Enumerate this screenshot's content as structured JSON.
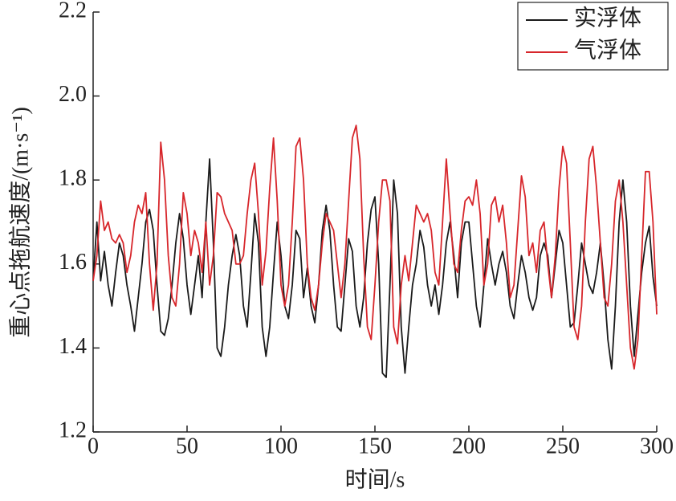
{
  "chart_data": {
    "type": "line",
    "x_label": "时间/s",
    "y_label": "重心点拖航速度/(m·s⁻¹)",
    "xlim": [
      0,
      300
    ],
    "xticks": [
      0,
      50,
      100,
      150,
      200,
      250,
      300
    ],
    "ylim": [
      1.2,
      2.2
    ],
    "yticks": [
      1.2,
      1.4,
      1.6,
      1.8,
      {
        "value": 2,
        "label": "2.0"
      },
      2.2
    ],
    "legend": "upper right",
    "x": [
      0,
      2,
      4,
      6,
      8,
      10,
      12,
      14,
      16,
      18,
      20,
      22,
      24,
      26,
      28,
      30,
      32,
      34,
      36,
      38,
      40,
      42,
      44,
      46,
      48,
      50,
      52,
      54,
      56,
      58,
      60,
      62,
      64,
      66,
      68,
      70,
      72,
      74,
      76,
      78,
      80,
      82,
      84,
      86,
      88,
      90,
      92,
      94,
      96,
      98,
      100,
      102,
      104,
      106,
      108,
      110,
      112,
      114,
      116,
      118,
      120,
      122,
      124,
      126,
      128,
      130,
      132,
      134,
      136,
      138,
      140,
      142,
      144,
      146,
      148,
      150,
      152,
      154,
      156,
      158,
      160,
      162,
      164,
      166,
      168,
      170,
      172,
      174,
      176,
      178,
      180,
      182,
      184,
      186,
      188,
      190,
      192,
      194,
      196,
      198,
      200,
      202,
      204,
      206,
      208,
      210,
      212,
      214,
      216,
      218,
      220,
      222,
      224,
      226,
      228,
      230,
      232,
      234,
      236,
      238,
      240,
      242,
      244,
      246,
      248,
      250,
      252,
      254,
      256,
      258,
      260,
      262,
      264,
      266,
      268,
      270,
      272,
      274,
      276,
      278,
      280,
      282,
      284,
      286,
      288,
      290,
      292,
      294,
      296,
      298,
      300
    ],
    "series": [
      {
        "name": "实浮体",
        "color": "#1a1a1a",
        "values": [
          1.56,
          1.7,
          1.56,
          1.63,
          1.55,
          1.5,
          1.58,
          1.65,
          1.62,
          1.55,
          1.5,
          1.44,
          1.52,
          1.6,
          1.7,
          1.73,
          1.68,
          1.55,
          1.44,
          1.43,
          1.47,
          1.55,
          1.65,
          1.72,
          1.66,
          1.55,
          1.48,
          1.55,
          1.62,
          1.52,
          1.7,
          1.85,
          1.65,
          1.4,
          1.38,
          1.45,
          1.55,
          1.62,
          1.67,
          1.62,
          1.5,
          1.45,
          1.58,
          1.72,
          1.65,
          1.45,
          1.38,
          1.45,
          1.58,
          1.7,
          1.62,
          1.5,
          1.47,
          1.55,
          1.68,
          1.66,
          1.52,
          1.59,
          1.5,
          1.46,
          1.55,
          1.68,
          1.74,
          1.68,
          1.55,
          1.45,
          1.44,
          1.55,
          1.66,
          1.63,
          1.5,
          1.45,
          1.52,
          1.65,
          1.73,
          1.76,
          1.6,
          1.34,
          1.33,
          1.55,
          1.8,
          1.72,
          1.45,
          1.34,
          1.45,
          1.55,
          1.6,
          1.68,
          1.64,
          1.55,
          1.5,
          1.55,
          1.48,
          1.55,
          1.65,
          1.7,
          1.62,
          1.52,
          1.65,
          1.7,
          1.7,
          1.6,
          1.5,
          1.45,
          1.55,
          1.66,
          1.6,
          1.55,
          1.6,
          1.63,
          1.58,
          1.5,
          1.47,
          1.55,
          1.62,
          1.58,
          1.52,
          1.49,
          1.52,
          1.62,
          1.65,
          1.62,
          1.52,
          1.6,
          1.68,
          1.65,
          1.55,
          1.45,
          1.46,
          1.55,
          1.65,
          1.6,
          1.55,
          1.53,
          1.58,
          1.65,
          1.55,
          1.42,
          1.35,
          1.5,
          1.7,
          1.8,
          1.7,
          1.5,
          1.38,
          1.48,
          1.58,
          1.65,
          1.69,
          1.57,
          1.5
        ]
      },
      {
        "name": "气浮体",
        "color": "#d7262b",
        "values": [
          1.56,
          1.62,
          1.75,
          1.68,
          1.7,
          1.66,
          1.65,
          1.67,
          1.65,
          1.58,
          1.62,
          1.7,
          1.74,
          1.72,
          1.77,
          1.6,
          1.49,
          1.6,
          1.89,
          1.8,
          1.62,
          1.52,
          1.5,
          1.6,
          1.77,
          1.72,
          1.62,
          1.68,
          1.65,
          1.58,
          1.7,
          1.55,
          1.62,
          1.77,
          1.76,
          1.72,
          1.7,
          1.68,
          1.6,
          1.6,
          1.62,
          1.72,
          1.8,
          1.84,
          1.72,
          1.55,
          1.63,
          1.78,
          1.9,
          1.75,
          1.55,
          1.5,
          1.55,
          1.7,
          1.88,
          1.9,
          1.8,
          1.6,
          1.52,
          1.49,
          1.55,
          1.65,
          1.72,
          1.7,
          1.68,
          1.6,
          1.52,
          1.6,
          1.75,
          1.9,
          1.93,
          1.85,
          1.62,
          1.45,
          1.42,
          1.55,
          1.7,
          1.8,
          1.8,
          1.75,
          1.45,
          1.41,
          1.55,
          1.62,
          1.56,
          1.65,
          1.74,
          1.72,
          1.7,
          1.72,
          1.68,
          1.58,
          1.55,
          1.7,
          1.85,
          1.72,
          1.6,
          1.58,
          1.68,
          1.75,
          1.76,
          1.74,
          1.8,
          1.72,
          1.55,
          1.6,
          1.74,
          1.76,
          1.7,
          1.74,
          1.65,
          1.52,
          1.55,
          1.68,
          1.81,
          1.76,
          1.62,
          1.65,
          1.58,
          1.68,
          1.7,
          1.6,
          1.52,
          1.62,
          1.78,
          1.88,
          1.84,
          1.65,
          1.45,
          1.42,
          1.5,
          1.7,
          1.85,
          1.88,
          1.78,
          1.65,
          1.52,
          1.5,
          1.6,
          1.75,
          1.8,
          1.7,
          1.55,
          1.4,
          1.35,
          1.42,
          1.62,
          1.82,
          1.82,
          1.7,
          1.48
        ]
      }
    ]
  }
}
